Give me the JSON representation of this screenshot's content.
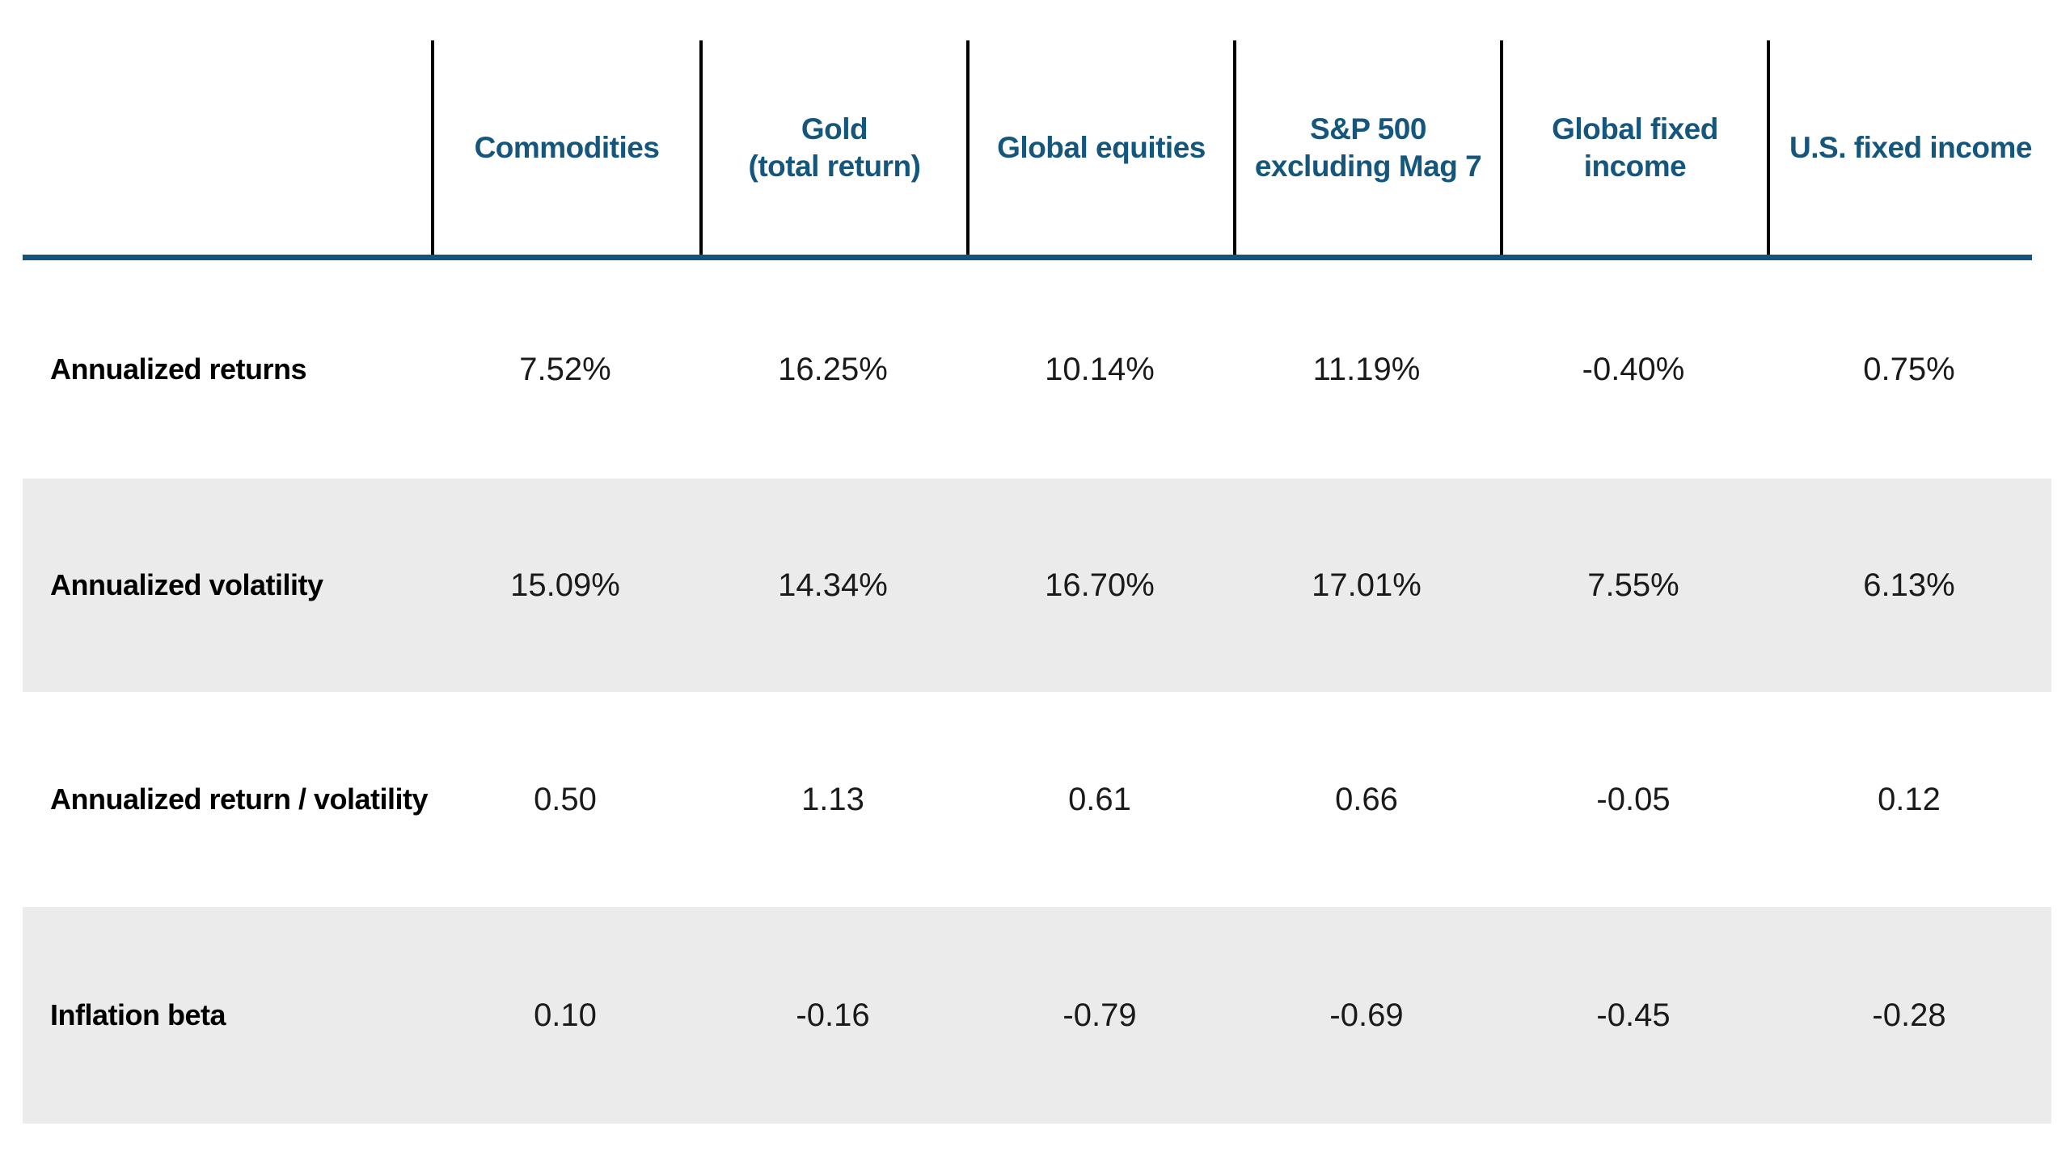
{
  "colors": {
    "header_text": "#15567D",
    "header_rule": "#15537E",
    "row_band": "#EBEBEB",
    "column_divider": "#000000",
    "value_text": "#1a1a1a"
  },
  "chart_data": {
    "type": "table",
    "columns": [
      "Commodities",
      "Gold\n(total return)",
      "Global equities",
      "S&P 500\nexcluding Mag 7",
      "Global fixed\nincome",
      "U.S. fixed income"
    ],
    "rows": [
      {
        "label": "Annualized returns",
        "values": [
          "7.52%",
          "16.25%",
          "10.14%",
          "11.19%",
          "-0.40%",
          "0.75%"
        ]
      },
      {
        "label": "Annualized volatility",
        "values": [
          "15.09%",
          "14.34%",
          "16.70%",
          "17.01%",
          "7.55%",
          "6.13%"
        ]
      },
      {
        "label": "Annualized return / volatility",
        "values": [
          "0.50",
          "1.13",
          "0.61",
          "0.66",
          "-0.05",
          "0.12"
        ]
      },
      {
        "label": "Inflation beta",
        "values": [
          "0.10",
          "-0.16",
          "-0.79",
          "-0.69",
          "-0.45",
          "-0.28"
        ]
      }
    ]
  }
}
